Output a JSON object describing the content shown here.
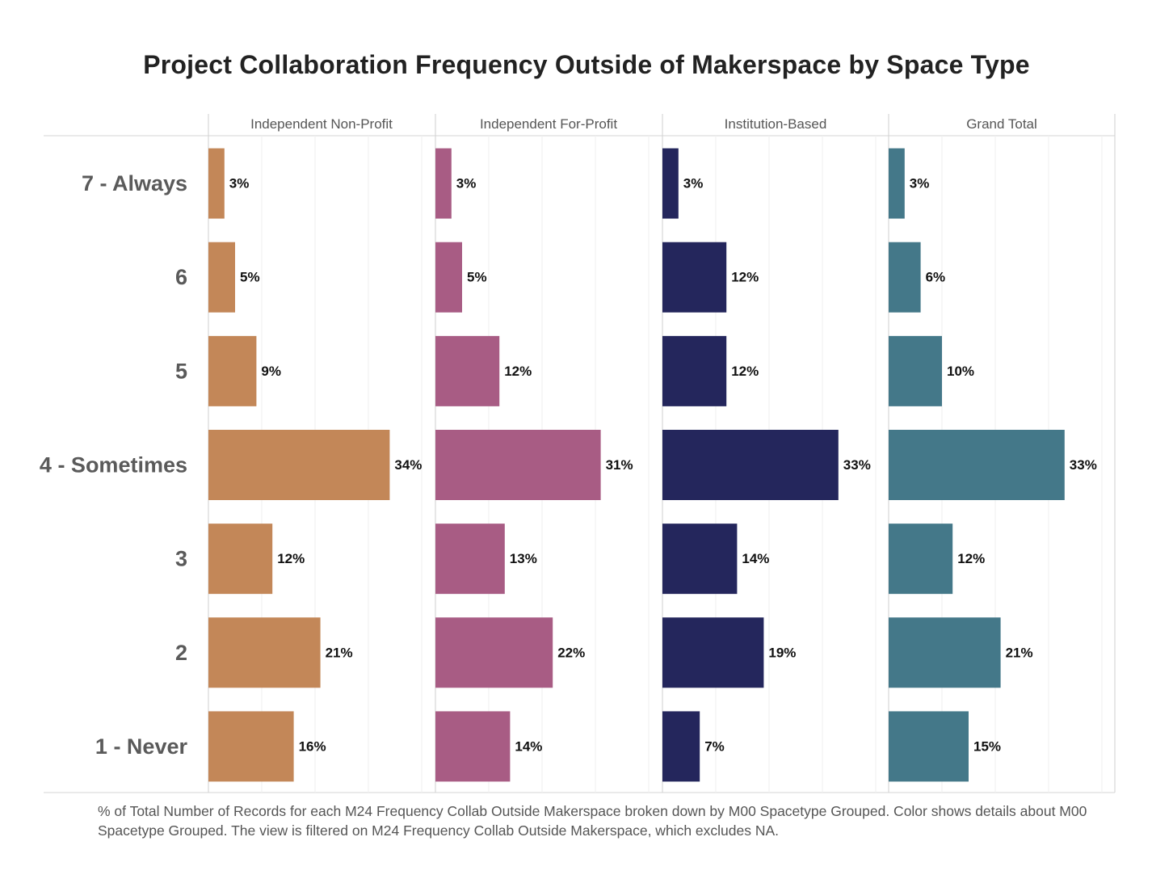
{
  "title": "Project Collaboration Frequency Outside of Makerspace by Space Type",
  "footnote": "% of Total Number of Records for each M24 Frequency Collab Outside Makerspace broken down by M00 Spacetype Grouped.  Color shows details about M00 Spacetype Grouped. The view is filtered on M24 Frequency Collab Outside Makerspace, which excludes NA.",
  "chart_data": {
    "type": "bar",
    "orientation": "horizontal",
    "categories": [
      "7 - Always",
      "6",
      "5",
      "4 - Sometimes",
      "3",
      "2",
      "1 - Never"
    ],
    "xlim": [
      0,
      40
    ],
    "grid": true,
    "series": [
      {
        "name": "Independent Non-Profit",
        "color": "#C38758",
        "values": [
          3,
          5,
          9,
          34,
          12,
          21,
          16
        ],
        "labels": [
          "3%",
          "5%",
          "9%",
          "34%",
          "12%",
          "21%",
          "16%"
        ]
      },
      {
        "name": "Independent For-Profit",
        "color": "#A85C84",
        "values": [
          3,
          5,
          12,
          31,
          13,
          22,
          14
        ],
        "labels": [
          "3%",
          "5%",
          "12%",
          "31%",
          "13%",
          "22%",
          "14%"
        ]
      },
      {
        "name": "Institution-Based",
        "color": "#24265C",
        "values": [
          3,
          12,
          12,
          33,
          14,
          19,
          7
        ],
        "labels": [
          "3%",
          "12%",
          "12%",
          "33%",
          "14%",
          "19%",
          "7%"
        ]
      },
      {
        "name": "Grand Total",
        "color": "#447889",
        "values": [
          3,
          6,
          10,
          33,
          12,
          21,
          15
        ],
        "labels": [
          "3%",
          "6%",
          "10%",
          "33%",
          "12%",
          "21%",
          "15%"
        ]
      }
    ]
  }
}
